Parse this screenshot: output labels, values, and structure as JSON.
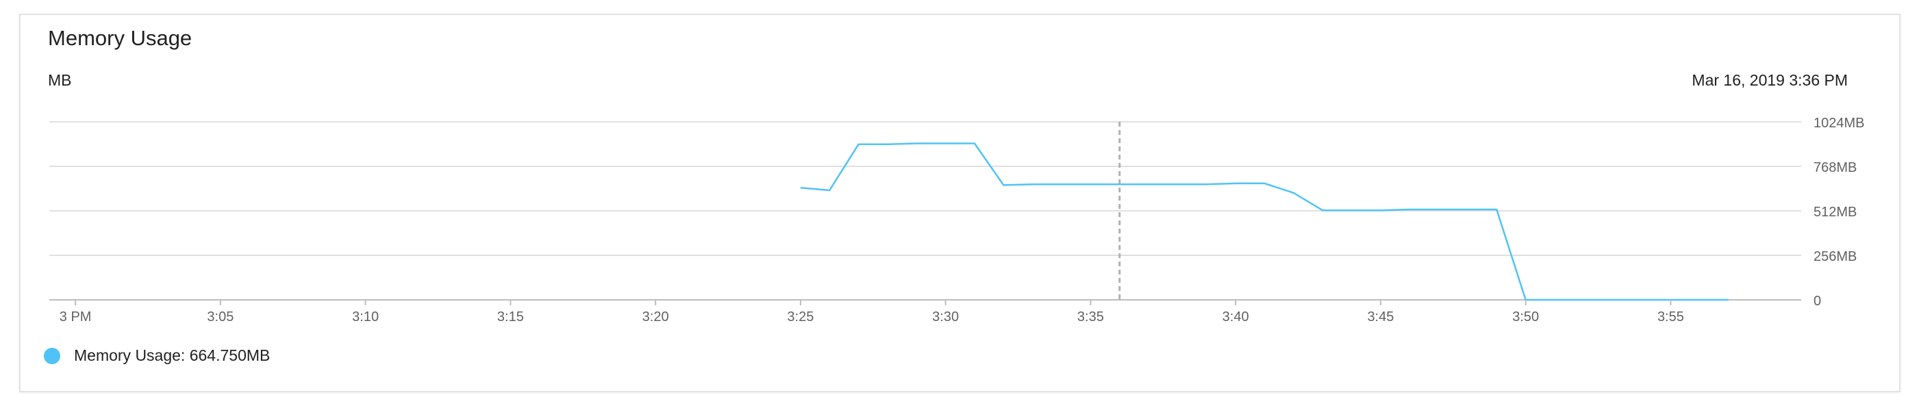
{
  "title": "Memory Usage",
  "unit": "MB",
  "timestamp": "Mar 16, 2019 3:36 PM",
  "colors": {
    "series": "#4fc3f7",
    "grid": "#e0e0e0",
    "axis": "#bdbdbd",
    "cursor": "#b0b0b0",
    "tick_text": "#616161"
  },
  "legend": {
    "label": "Memory Usage: 664.750MB"
  },
  "chart_data": {
    "type": "line",
    "x_tick_labels": [
      "3 PM",
      "3:05",
      "3:10",
      "3:15",
      "3:20",
      "3:25",
      "3:30",
      "3:35",
      "3:40",
      "3:45",
      "3:50",
      "3:55"
    ],
    "x_tick_minutes": [
      0,
      5,
      10,
      15,
      20,
      25,
      30,
      35,
      40,
      45,
      50,
      55
    ],
    "y_tick_labels": [
      "0",
      "256MB",
      "512MB",
      "768MB",
      "1024MB"
    ],
    "y_tick_values": [
      0,
      256,
      512,
      768,
      1024
    ],
    "xlim_minutes": [
      -0.9,
      59.5
    ],
    "ylim": [
      0,
      1024
    ],
    "cursor_minute": 36,
    "grid": true,
    "series": [
      {
        "name": "Memory Usage",
        "x_minutes": [
          25,
          26,
          27,
          28,
          29,
          30,
          31,
          32,
          33,
          34,
          35,
          36,
          37,
          38,
          39,
          40,
          41,
          42,
          43,
          44,
          45,
          46,
          47,
          48,
          49,
          50,
          51,
          52,
          53,
          54,
          55,
          56,
          57
        ],
        "values": [
          645,
          630,
          895,
          895,
          900,
          900,
          900,
          660,
          665,
          665,
          665,
          665,
          665,
          665,
          665,
          670,
          670,
          615,
          515,
          515,
          515,
          520,
          520,
          520,
          520,
          0,
          0,
          0,
          0,
          0,
          0,
          0,
          0
        ]
      }
    ]
  }
}
